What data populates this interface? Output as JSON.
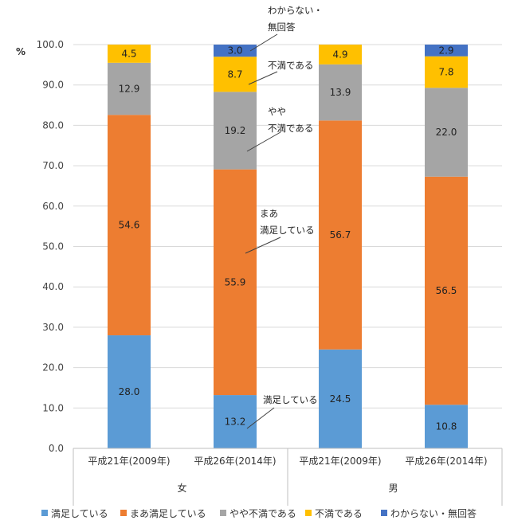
{
  "chart_data": {
    "type": "bar",
    "stacked": true,
    "unit_label": "%",
    "ylim": [
      0,
      100
    ],
    "y_ticks": [
      "0.0",
      "10.0",
      "20.0",
      "30.0",
      "40.0",
      "50.0",
      "60.0",
      "70.0",
      "80.0",
      "90.0",
      "100.0"
    ],
    "categories": [
      "平成21年(2009年)",
      "平成26年(2014年)",
      "平成21年(2009年)",
      "平成26年(2014年)"
    ],
    "groups": [
      {
        "label": "女",
        "categories": [
          0,
          1
        ]
      },
      {
        "label": "男",
        "categories": [
          2,
          3
        ]
      }
    ],
    "series": [
      {
        "name": "満足している",
        "color": "#5b9bd5",
        "values": [
          28.0,
          13.2,
          24.5,
          10.8
        ],
        "labels": [
          "28.0",
          "13.2",
          "24.5",
          "10.8"
        ]
      },
      {
        "name": "まあ満足している",
        "color": "#ed7d31",
        "values": [
          54.6,
          55.9,
          56.7,
          56.5
        ],
        "labels": [
          "54.6",
          "55.9",
          "56.7",
          "56.5"
        ]
      },
      {
        "name": "やや不満である",
        "color": "#a5a5a5",
        "values": [
          12.9,
          19.2,
          13.9,
          22.0
        ],
        "labels": [
          "12.9",
          "19.2",
          "13.9",
          "22.0"
        ]
      },
      {
        "name": "不満である",
        "color": "#ffc000",
        "values": [
          4.5,
          8.7,
          4.9,
          7.8
        ],
        "labels": [
          "4.5",
          "8.7",
          "4.9",
          "7.8"
        ]
      },
      {
        "name": "わからない・無回答",
        "color": "#4472c4",
        "values": [
          0.0,
          3.0,
          0.0,
          2.9
        ],
        "labels": [
          "",
          "3.0",
          "",
          "2.9"
        ]
      }
    ],
    "annotations": [
      {
        "lines": [
          "わからない・",
          "無回答"
        ],
        "series": 4
      },
      {
        "lines": [
          "不満である"
        ],
        "series": 3
      },
      {
        "lines": [
          "やや",
          "不満である"
        ],
        "series": 2
      },
      {
        "lines": [
          "まあ",
          "満足している"
        ],
        "series": 1
      },
      {
        "lines": [
          "満足している"
        ],
        "series": 0
      }
    ],
    "legend_position": "bottom",
    "grid": true
  }
}
